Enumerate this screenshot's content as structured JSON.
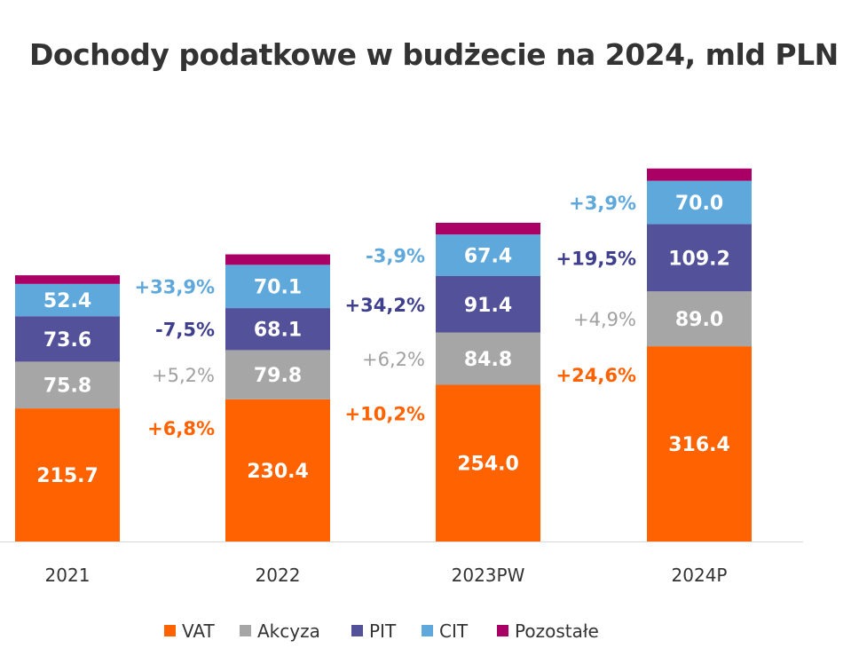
{
  "chart_data": {
    "type": "bar",
    "stacked": true,
    "title": "Dochody podatkowe w budżecie na 2024, mld PLN",
    "categories": [
      "2021",
      "2022",
      "2023PW",
      "2024P"
    ],
    "series": [
      {
        "name": "VAT",
        "color": "#FF6200",
        "values": [
          215.7,
          230.4,
          254.0,
          316.4
        ],
        "labels": [
          "215.7",
          "230.4",
          "254.0",
          "316.4"
        ],
        "changes": [
          "",
          "+6,8%",
          "+10,2%",
          "+24,6%"
        ]
      },
      {
        "name": "Akcyza",
        "color": "#A6A6A6",
        "values": [
          75.8,
          79.8,
          84.8,
          89.0
        ],
        "labels": [
          "75.8",
          "79.8",
          "84.8",
          "89.0"
        ],
        "changes": [
          "",
          "+5,2%",
          "+6,2%",
          "+4,9%"
        ]
      },
      {
        "name": "PIT",
        "color": "#525199",
        "values": [
          73.6,
          68.1,
          91.4,
          109.2
        ],
        "labels": [
          "73.6",
          "68.1",
          "91.4",
          "109.2"
        ],
        "changes": [
          "",
          "-7,5%",
          "+34,2%",
          "+19,5%"
        ]
      },
      {
        "name": "CIT",
        "color": "#5FA8DC",
        "values": [
          52.4,
          70.1,
          67.4,
          70.0
        ],
        "labels": [
          "52.4",
          "70.1",
          "67.4",
          "70.0"
        ],
        "changes": [
          "",
          "+33,9%",
          "-3,9%",
          "+3,9%"
        ]
      },
      {
        "name": "Pozostałe",
        "color": "#AA0066",
        "values": [
          14,
          17,
          19,
          20
        ],
        "labels": [
          "",
          "",
          "",
          ""
        ],
        "changes": [
          "",
          "",
          "",
          ""
        ]
      }
    ],
    "legend_position": "bottom",
    "grid": false
  }
}
